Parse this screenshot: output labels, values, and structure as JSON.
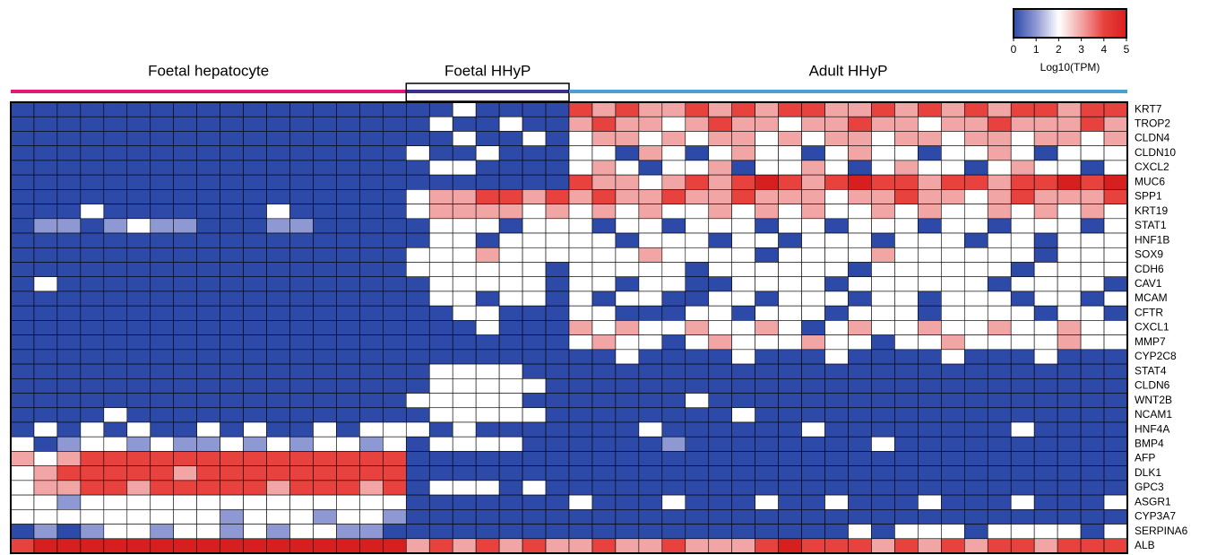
{
  "chart_data": {
    "type": "heatmap",
    "groups": [
      {
        "name": "Foetal hepatocyte",
        "color": "#e0187a",
        "columns": 17
      },
      {
        "name": "Foetal HHyP",
        "color": "#3a2f8f",
        "columns": 7
      },
      {
        "name": "Adult HHyP",
        "color": "#4a9fd4",
        "columns": 24
      }
    ],
    "rows": [
      "KRT7",
      "TROP2",
      "CLDN4",
      "CLDN10",
      "CXCL2",
      "MUC6",
      "SPP1",
      "KRT19",
      "STAT1",
      "HNF1B",
      "SOX9",
      "CDH6",
      "CAV1",
      "MCAM",
      "CFTR",
      "CXCL1",
      "MMP7",
      "CYP2C8",
      "STAT4",
      "CLDN6",
      "WNT2B",
      "NCAM1",
      "HNF4A",
      "BMP4",
      "AFP",
      "DLK1",
      "GPC3",
      "ASGR1",
      "CYP3A7",
      "SERPINA6",
      "ALB"
    ],
    "values": [
      [
        0,
        0,
        0,
        0,
        0,
        0,
        0,
        0,
        0,
        0,
        0,
        0,
        0,
        0,
        0,
        0,
        0,
        0,
        0,
        2,
        0,
        0,
        0,
        0,
        4,
        3,
        4,
        3,
        3,
        4,
        3,
        4,
        3,
        4,
        4,
        3,
        3,
        4,
        3,
        4,
        3,
        4,
        3,
        4,
        4,
        3,
        4,
        4
      ],
      [
        0,
        0,
        0,
        0,
        0,
        0,
        0,
        0,
        0,
        0,
        0,
        0,
        0,
        0,
        0,
        0,
        0,
        0,
        2,
        0,
        0,
        2,
        0,
        0,
        3,
        4,
        3,
        3,
        2,
        3,
        4,
        3,
        3,
        2,
        3,
        3,
        4,
        3,
        3,
        2,
        3,
        3,
        4,
        3,
        3,
        3,
        4,
        3
      ],
      [
        0,
        0,
        0,
        0,
        0,
        0,
        0,
        0,
        0,
        0,
        0,
        0,
        0,
        0,
        0,
        0,
        0,
        0,
        0,
        2,
        0,
        0,
        2,
        0,
        2,
        3,
        3,
        2,
        3,
        2,
        3,
        3,
        2,
        3,
        2,
        3,
        3,
        2,
        3,
        3,
        2,
        3,
        3,
        2,
        3,
        3,
        2,
        3
      ],
      [
        0,
        0,
        0,
        0,
        0,
        0,
        0,
        0,
        0,
        0,
        0,
        0,
        0,
        0,
        0,
        0,
        0,
        2,
        0,
        0,
        2,
        0,
        0,
        0,
        2,
        2,
        0,
        3,
        2,
        0,
        2,
        3,
        2,
        2,
        0,
        2,
        3,
        2,
        2,
        0,
        2,
        2,
        3,
        2,
        0,
        2,
        2,
        2
      ],
      [
        0,
        0,
        0,
        0,
        0,
        0,
        0,
        0,
        0,
        0,
        0,
        0,
        0,
        0,
        0,
        0,
        0,
        0,
        2,
        2,
        0,
        0,
        0,
        0,
        2,
        3,
        2,
        0,
        2,
        2,
        3,
        0,
        2,
        2,
        3,
        2,
        0,
        2,
        3,
        2,
        2,
        0,
        2,
        3,
        2,
        2,
        0,
        2
      ],
      [
        0,
        0,
        0,
        0,
        0,
        0,
        0,
        0,
        0,
        0,
        0,
        0,
        0,
        0,
        0,
        0,
        0,
        0,
        0,
        0,
        0,
        0,
        0,
        0,
        4,
        3,
        3,
        2,
        3,
        4,
        3,
        4,
        5,
        4,
        3,
        4,
        5,
        4,
        4,
        3,
        4,
        4,
        3,
        4,
        4,
        5,
        4,
        5
      ],
      [
        0,
        0,
        0,
        0,
        0,
        0,
        0,
        0,
        0,
        0,
        0,
        0,
        0,
        0,
        0,
        0,
        0,
        2,
        3,
        3,
        4,
        4,
        3,
        4,
        3,
        4,
        3,
        3,
        4,
        3,
        3,
        4,
        3,
        3,
        3,
        2,
        3,
        3,
        4,
        3,
        3,
        2,
        3,
        4,
        3,
        3,
        3,
        4
      ],
      [
        0,
        0,
        0,
        2,
        0,
        0,
        0,
        0,
        0,
        0,
        0,
        2,
        0,
        0,
        0,
        0,
        0,
        2,
        3,
        3,
        3,
        3,
        2,
        3,
        2,
        3,
        2,
        3,
        2,
        2,
        3,
        2,
        3,
        2,
        3,
        2,
        2,
        3,
        2,
        3,
        2,
        2,
        3,
        2,
        3,
        2,
        3,
        2
      ],
      [
        0,
        1,
        1,
        0,
        1,
        2,
        1,
        1,
        0,
        0,
        0,
        1,
        1,
        0,
        0,
        0,
        0,
        0,
        2,
        2,
        2,
        0,
        2,
        2,
        2,
        0,
        2,
        2,
        0,
        2,
        2,
        2,
        0,
        2,
        2,
        0,
        2,
        2,
        2,
        0,
        2,
        2,
        0,
        2,
        2,
        2,
        0,
        2
      ],
      [
        0,
        0,
        0,
        0,
        0,
        0,
        0,
        0,
        0,
        0,
        0,
        0,
        0,
        0,
        0,
        0,
        0,
        0,
        2,
        2,
        0,
        2,
        2,
        2,
        2,
        2,
        0,
        2,
        2,
        2,
        0,
        2,
        2,
        0,
        2,
        2,
        2,
        0,
        2,
        2,
        2,
        0,
        2,
        2,
        0,
        2,
        2,
        2
      ],
      [
        0,
        0,
        0,
        0,
        0,
        0,
        0,
        0,
        0,
        0,
        0,
        0,
        0,
        0,
        0,
        0,
        0,
        2,
        2,
        2,
        3,
        2,
        2,
        2,
        2,
        2,
        2,
        3,
        2,
        2,
        2,
        2,
        0,
        2,
        2,
        2,
        2,
        3,
        2,
        2,
        2,
        2,
        2,
        2,
        0,
        2,
        2,
        2
      ],
      [
        0,
        0,
        0,
        0,
        0,
        0,
        0,
        0,
        0,
        0,
        0,
        0,
        0,
        0,
        0,
        0,
        0,
        2,
        2,
        2,
        2,
        2,
        2,
        0,
        2,
        2,
        2,
        2,
        2,
        0,
        2,
        2,
        2,
        2,
        2,
        2,
        0,
        2,
        2,
        2,
        2,
        2,
        2,
        0,
        2,
        2,
        2,
        2
      ],
      [
        0,
        2,
        0,
        0,
        0,
        0,
        0,
        0,
        0,
        0,
        0,
        0,
        0,
        0,
        0,
        0,
        0,
        0,
        2,
        2,
        2,
        2,
        2,
        0,
        2,
        2,
        0,
        2,
        2,
        0,
        0,
        2,
        2,
        2,
        2,
        0,
        2,
        2,
        2,
        2,
        2,
        2,
        0,
        2,
        2,
        2,
        2,
        0
      ],
      [
        0,
        0,
        0,
        0,
        0,
        0,
        0,
        0,
        0,
        0,
        0,
        0,
        0,
        0,
        0,
        0,
        0,
        0,
        2,
        2,
        0,
        2,
        2,
        0,
        2,
        0,
        2,
        2,
        0,
        0,
        2,
        2,
        0,
        2,
        2,
        2,
        0,
        2,
        2,
        0,
        2,
        2,
        2,
        0,
        2,
        2,
        0,
        2
      ],
      [
        0,
        0,
        0,
        0,
        0,
        0,
        0,
        0,
        0,
        0,
        0,
        0,
        0,
        0,
        0,
        0,
        0,
        0,
        0,
        2,
        2,
        0,
        0,
        0,
        2,
        2,
        0,
        0,
        0,
        2,
        2,
        0,
        2,
        2,
        2,
        0,
        2,
        2,
        2,
        0,
        2,
        2,
        2,
        2,
        0,
        2,
        2,
        0
      ],
      [
        0,
        0,
        0,
        0,
        0,
        0,
        0,
        0,
        0,
        0,
        0,
        0,
        0,
        0,
        0,
        0,
        0,
        0,
        0,
        0,
        2,
        0,
        0,
        0,
        3,
        2,
        3,
        2,
        2,
        3,
        2,
        2,
        3,
        2,
        0,
        2,
        3,
        2,
        2,
        3,
        2,
        2,
        3,
        2,
        2,
        3,
        2,
        2
      ],
      [
        0,
        0,
        0,
        0,
        0,
        0,
        0,
        0,
        0,
        0,
        0,
        0,
        0,
        0,
        0,
        0,
        0,
        0,
        0,
        0,
        0,
        0,
        0,
        0,
        2,
        3,
        2,
        2,
        0,
        2,
        3,
        2,
        2,
        2,
        3,
        2,
        2,
        0,
        2,
        2,
        3,
        2,
        2,
        2,
        2,
        3,
        2,
        2
      ],
      [
        0,
        0,
        0,
        0,
        0,
        0,
        0,
        0,
        0,
        0,
        0,
        0,
        0,
        0,
        0,
        0,
        0,
        0,
        0,
        0,
        0,
        0,
        0,
        0,
        0,
        0,
        2,
        0,
        0,
        0,
        0,
        2,
        0,
        0,
        0,
        2,
        0,
        0,
        0,
        0,
        2,
        0,
        0,
        0,
        2,
        0,
        0,
        0
      ],
      [
        0,
        0,
        0,
        0,
        0,
        0,
        0,
        0,
        0,
        0,
        0,
        0,
        0,
        0,
        0,
        0,
        0,
        0,
        2,
        2,
        2,
        2,
        0,
        0,
        0,
        0,
        0,
        0,
        0,
        0,
        0,
        0,
        0,
        0,
        0,
        0,
        0,
        0,
        0,
        0,
        0,
        0,
        0,
        0,
        0,
        0,
        0,
        0
      ],
      [
        0,
        0,
        0,
        0,
        0,
        0,
        0,
        0,
        0,
        0,
        0,
        0,
        0,
        0,
        0,
        0,
        0,
        0,
        2,
        2,
        2,
        2,
        2,
        0,
        0,
        0,
        0,
        0,
        0,
        0,
        0,
        0,
        0,
        0,
        0,
        0,
        0,
        0,
        0,
        0,
        0,
        0,
        0,
        0,
        0,
        0,
        0,
        0
      ],
      [
        0,
        0,
        0,
        0,
        0,
        0,
        0,
        0,
        0,
        0,
        0,
        0,
        0,
        0,
        0,
        0,
        0,
        2,
        2,
        2,
        2,
        2,
        0,
        0,
        0,
        0,
        0,
        0,
        0,
        2,
        0,
        0,
        0,
        0,
        0,
        0,
        0,
        0,
        0,
        0,
        0,
        0,
        0,
        0,
        0,
        0,
        0,
        0
      ],
      [
        0,
        0,
        0,
        0,
        2,
        0,
        0,
        0,
        0,
        0,
        0,
        0,
        0,
        0,
        0,
        0,
        0,
        0,
        2,
        2,
        2,
        2,
        2,
        0,
        0,
        0,
        0,
        0,
        0,
        0,
        0,
        2,
        0,
        0,
        0,
        0,
        0,
        0,
        0,
        0,
        0,
        0,
        0,
        0,
        0,
        0,
        0,
        0
      ],
      [
        0,
        2,
        0,
        2,
        0,
        2,
        0,
        0,
        2,
        0,
        2,
        0,
        0,
        2,
        0,
        2,
        2,
        2,
        0,
        2,
        0,
        0,
        0,
        0,
        0,
        0,
        0,
        2,
        0,
        0,
        0,
        0,
        0,
        0,
        2,
        0,
        0,
        0,
        0,
        0,
        0,
        0,
        0,
        2,
        0,
        0,
        0,
        0
      ],
      [
        2,
        0,
        1,
        2,
        2,
        1,
        2,
        1,
        1,
        2,
        1,
        2,
        1,
        2,
        2,
        1,
        2,
        0,
        2,
        2,
        2,
        2,
        0,
        0,
        0,
        0,
        0,
        0,
        1,
        0,
        0,
        0,
        0,
        0,
        0,
        0,
        0,
        2,
        0,
        0,
        0,
        0,
        0,
        0,
        0,
        0,
        0,
        0
      ],
      [
        3,
        2,
        3,
        4,
        4,
        4,
        4,
        4,
        4,
        4,
        4,
        4,
        4,
        4,
        4,
        4,
        4,
        0,
        0,
        0,
        0,
        0,
        0,
        0,
        0,
        0,
        0,
        0,
        0,
        0,
        0,
        0,
        0,
        0,
        0,
        0,
        0,
        0,
        0,
        0,
        0,
        0,
        0,
        0,
        0,
        0,
        0,
        0
      ],
      [
        2,
        3,
        4,
        4,
        4,
        4,
        4,
        3,
        4,
        4,
        4,
        4,
        4,
        4,
        4,
        4,
        4,
        0,
        0,
        0,
        0,
        0,
        0,
        0,
        0,
        0,
        0,
        0,
        0,
        0,
        0,
        0,
        0,
        0,
        0,
        0,
        0,
        0,
        0,
        0,
        0,
        0,
        0,
        0,
        0,
        0,
        0,
        0
      ],
      [
        2,
        3,
        3,
        4,
        4,
        3,
        4,
        4,
        4,
        4,
        4,
        3,
        4,
        4,
        4,
        3,
        4,
        0,
        2,
        2,
        2,
        0,
        2,
        0,
        0,
        0,
        0,
        0,
        0,
        0,
        0,
        0,
        0,
        0,
        0,
        0,
        0,
        0,
        0,
        0,
        0,
        0,
        0,
        0,
        0,
        0,
        0,
        0
      ],
      [
        2,
        2,
        1,
        2,
        2,
        2,
        2,
        2,
        2,
        2,
        2,
        2,
        2,
        2,
        2,
        2,
        2,
        0,
        0,
        0,
        0,
        0,
        0,
        0,
        2,
        0,
        0,
        0,
        2,
        0,
        0,
        0,
        2,
        0,
        0,
        2,
        0,
        0,
        0,
        2,
        0,
        0,
        0,
        2,
        0,
        0,
        0,
        2
      ],
      [
        2,
        2,
        2,
        2,
        2,
        2,
        2,
        2,
        2,
        1,
        2,
        2,
        2,
        1,
        2,
        2,
        1,
        0,
        0,
        0,
        0,
        0,
        0,
        0,
        0,
        0,
        0,
        0,
        0,
        0,
        0,
        0,
        0,
        0,
        0,
        0,
        0,
        0,
        0,
        0,
        0,
        0,
        0,
        0,
        0,
        0,
        0,
        0
      ],
      [
        0,
        1,
        0,
        1,
        2,
        2,
        1,
        2,
        2,
        1,
        2,
        1,
        2,
        2,
        1,
        1,
        0,
        0,
        0,
        0,
        0,
        0,
        0,
        0,
        0,
        0,
        0,
        0,
        0,
        0,
        0,
        0,
        0,
        0,
        0,
        0,
        2,
        0,
        2,
        2,
        2,
        0,
        2,
        2,
        2,
        2,
        0,
        2
      ],
      [
        4,
        5,
        5,
        5,
        5,
        5,
        5,
        5,
        5,
        5,
        5,
        5,
        5,
        5,
        5,
        5,
        5,
        3,
        4,
        3,
        4,
        3,
        4,
        3,
        3,
        4,
        3,
        3,
        4,
        3,
        3,
        3,
        4,
        5,
        4,
        4,
        4,
        3,
        4,
        3,
        4,
        3,
        4,
        4,
        3,
        4,
        4,
        4
      ]
    ],
    "colorbar": {
      "label": "Log10(TPM)",
      "zlim": [
        0,
        5
      ],
      "ticks": [
        0,
        1,
        2,
        3,
        4,
        5
      ],
      "colors": [
        "#2e4aa8",
        "#8e98d2",
        "#ffffff",
        "#f2a5a5",
        "#e8423f",
        "#d81f1f"
      ]
    }
  }
}
